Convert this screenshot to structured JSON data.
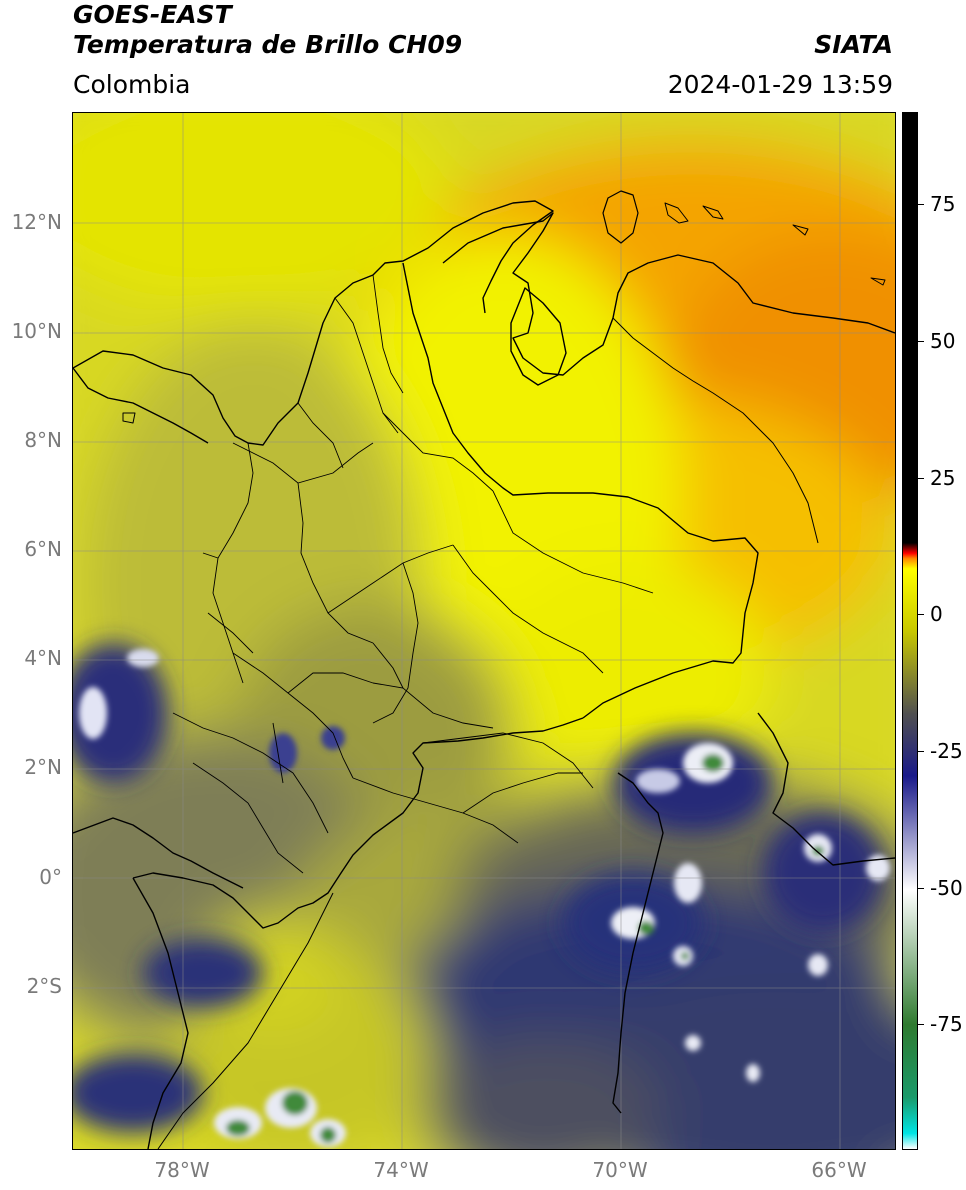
{
  "header": {
    "title_line1": "GOES-EAST",
    "title_line2": "Temperatura de Brillo CH09",
    "region": "Colombia",
    "organization": "SIATA",
    "timestamp": "2024-01-29 13:59"
  },
  "map": {
    "latitude_labels": [
      "12°N",
      "10°N",
      "8°N",
      "6°N",
      "4°N",
      "2°N",
      "0°",
      "2°S"
    ],
    "longitude_labels": [
      "78°W",
      "74°W",
      "70°W",
      "66°W"
    ],
    "gridlines": true,
    "colors": {
      "warm_orange": "#f5a000",
      "yellow": "#ecec00",
      "olive": "#b8b830",
      "gray_olive": "#6e6e50",
      "dark_blue": "#242e6a",
      "cloud_white": "#e8eaf4",
      "cloud_green": "#3f8a3a",
      "border": "#000000"
    }
  },
  "colorbar": {
    "tick_labels": [
      "75",
      "50",
      "25",
      "0",
      "-25",
      "-50",
      "-75"
    ],
    "color_stops": [
      "#ffffff",
      "#00e5e5",
      "#1a9a6a",
      "#2f7a2f",
      "#ffffff",
      "#1a1a8a",
      "#505050",
      "#c8c800",
      "#ffff00",
      "#ff8800",
      "#ff0000",
      "#000000"
    ]
  }
}
